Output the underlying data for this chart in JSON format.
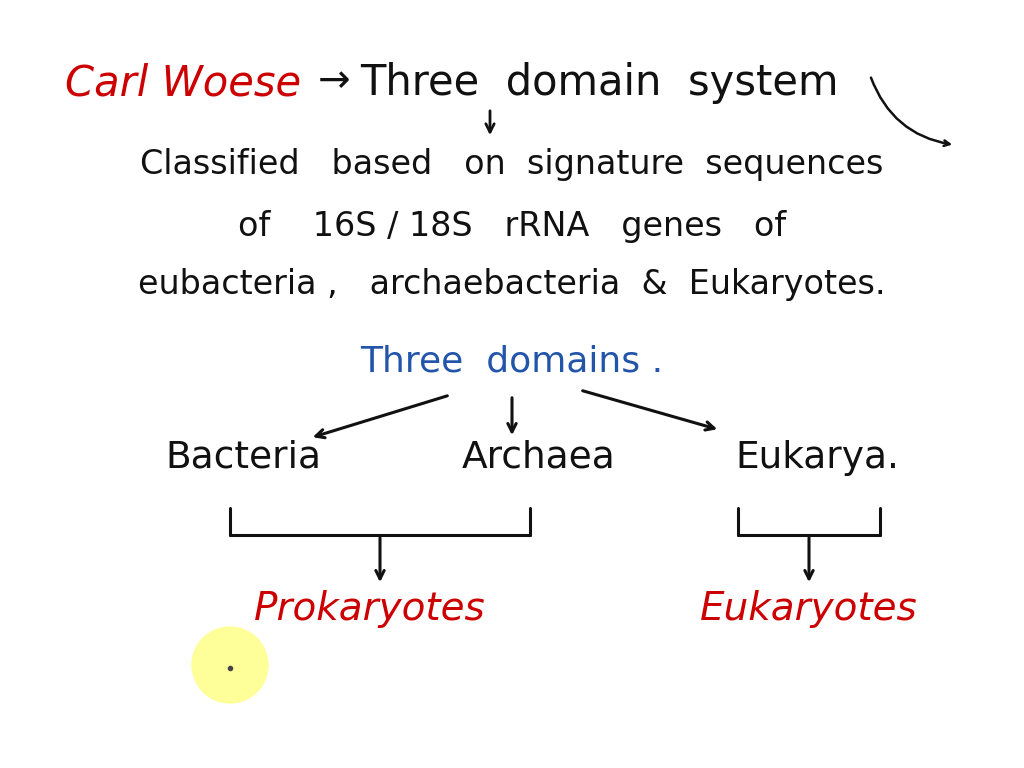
{
  "bg_color": "#ffffff",
  "red": "#cc0000",
  "blue": "#2255aa",
  "black": "#111111",
  "title_red": "Carl Woese",
  "title_arrow": "→",
  "title_black": "Three  domain  system",
  "line2": "Classified   based   on  signature  sequences",
  "line3": "of    16S / 18S   rRNA   genes   of",
  "line4": "eubacteria ,   archaebacteria  &  Eukaryotes.",
  "three_domains": "Three  domains .",
  "bacteria": "Bacteria",
  "archaea": "Archaea",
  "eukarya": "Eukarya.",
  "prokaryotes": "Prokaryotes",
  "eukaryotes": "Eukaryotes",
  "yellow": "#ffff99"
}
